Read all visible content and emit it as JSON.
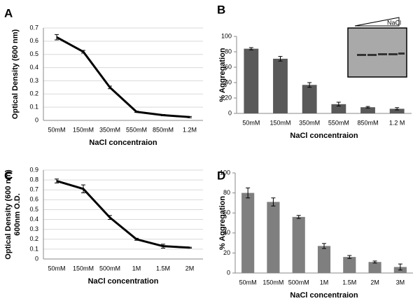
{
  "chart_data": [
    {
      "type": "line",
      "panel": "A",
      "ylabel": "Optical Density (600 nm)",
      "xlabel": "NaCl concentraion",
      "categories": [
        "50mM",
        "150mM",
        "350mM",
        "550mM",
        "850mM",
        "1.2M"
      ],
      "values": [
        0.63,
        0.52,
        0.25,
        0.065,
        0.04,
        0.025
      ],
      "errors": [
        0.02,
        0.01,
        0.01,
        0.005,
        0.005,
        0.005
      ],
      "color": "#000000",
      "ylim": [
        0,
        0.7
      ],
      "yticks": [
        0,
        0.1,
        0.2,
        0.3,
        0.4,
        0.5,
        0.6,
        0.7
      ],
      "grid": true
    },
    {
      "type": "bar",
      "panel": "B",
      "ylabel": "% Aggregation",
      "xlabel": "NaCl concentraion",
      "inset_label": "NaCl",
      "categories": [
        "50mM",
        "150mM",
        "350mM",
        "550mM",
        "850mM",
        "1.2 M"
      ],
      "values": [
        84,
        71,
        37,
        12,
        8,
        6
      ],
      "errors": [
        1.5,
        3,
        3,
        2.5,
        1,
        1.5
      ],
      "color": "#595959",
      "ylim": [
        0,
        100
      ],
      "yticks": [
        0,
        20,
        40,
        60,
        80,
        100
      ],
      "grid": false
    },
    {
      "type": "line",
      "panel": "C",
      "ylabel": "Optical Density (600 nm)",
      "ylabel2": "600nm O.D.",
      "xlabel": "NaCl concentration",
      "categories": [
        "50mM",
        "150mM",
        "500mM",
        "1M",
        "1.5M",
        "2M"
      ],
      "values": [
        0.79,
        0.71,
        0.42,
        0.2,
        0.13,
        0.115
      ],
      "errors": [
        0.02,
        0.04,
        0.02,
        0.01,
        0.02,
        0.005
      ],
      "color": "#000000",
      "ylim": [
        0,
        0.9
      ],
      "yticks": [
        0,
        0.1,
        0.2,
        0.3,
        0.4,
        0.5,
        0.6,
        0.7,
        0.8,
        0.9
      ],
      "grid": true
    },
    {
      "type": "bar",
      "panel": "D",
      "ylabel": "% Aggregation",
      "xlabel": "NaCl concentraion",
      "categories": [
        "50mM",
        "150mM",
        "500mM",
        "1M",
        "1.5M",
        "2M",
        "3M"
      ],
      "values": [
        80,
        71,
        56,
        27,
        16,
        11,
        6
      ],
      "errors": [
        5,
        4,
        1.5,
        2.5,
        1.5,
        1,
        3
      ],
      "color": "#7f7f7f",
      "ylim": [
        0,
        100
      ],
      "yticks": [
        0,
        20,
        40,
        60,
        80,
        100
      ],
      "grid": false
    }
  ]
}
